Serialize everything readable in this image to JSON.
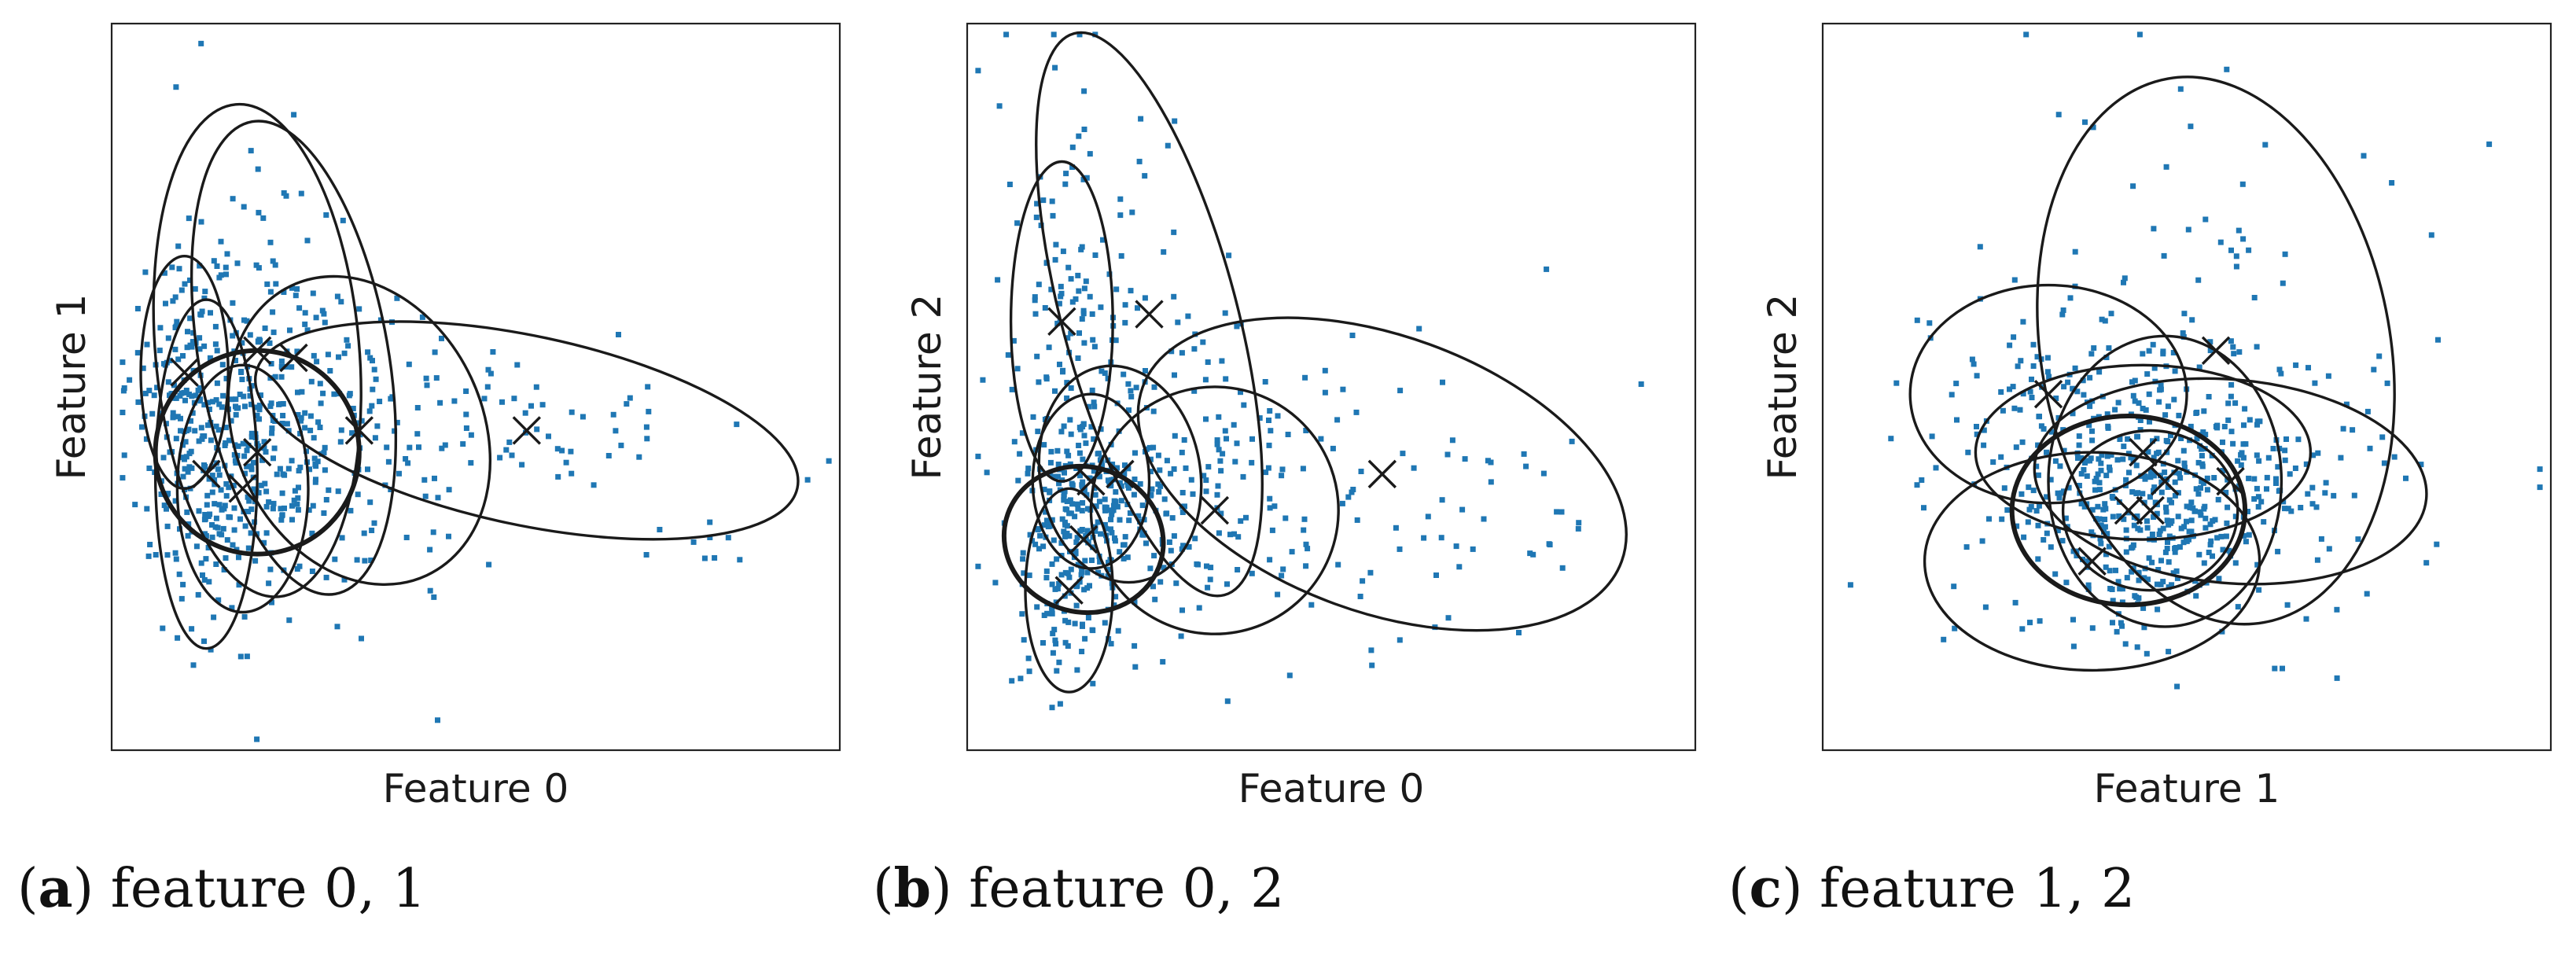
{
  "chart_data": [
    {
      "type": "scatter",
      "panel_letter": "a",
      "caption_text": "feature 0, 1",
      "xlabel": "Feature 0",
      "ylabel": "Feature 1",
      "ticks": "none",
      "grid": false,
      "marker_color": "#1f77b4",
      "ellipse_color": "#1a1a1a",
      "n_points": 650,
      "components": [
        {
          "mean": [
            0.13,
            0.38
          ],
          "axes": [
            0.07,
            0.24
          ],
          "angle": 0
        },
        {
          "mean": [
            0.2,
            0.55
          ],
          "axes": [
            0.14,
            0.34
          ],
          "angle": 5
        },
        {
          "mean": [
            0.25,
            0.54
          ],
          "axes": [
            0.13,
            0.33
          ],
          "angle": 10
        },
        {
          "mean": [
            0.2,
            0.41
          ],
          "axes": [
            0.14,
            0.14
          ],
          "angle": 0,
          "emphasis": true
        },
        {
          "mean": [
            0.34,
            0.44
          ],
          "axes": [
            0.17,
            0.22
          ],
          "angle": 25
        },
        {
          "mean": [
            0.57,
            0.44
          ],
          "axes": [
            0.38,
            0.13
          ],
          "angle": -12
        },
        {
          "mean": [
            0.18,
            0.36
          ],
          "axes": [
            0.09,
            0.17
          ],
          "angle": 0
        },
        {
          "mean": [
            0.1,
            0.52
          ],
          "axes": [
            0.06,
            0.16
          ],
          "angle": 0
        }
      ]
    },
    {
      "type": "scatter",
      "panel_letter": "b",
      "caption_text": "feature 0, 2",
      "xlabel": "Feature 0",
      "ylabel": "Feature 2",
      "ticks": "none",
      "grid": false,
      "marker_color": "#1f77b4",
      "ellipse_color": "#1a1a1a",
      "n_points": 650,
      "components": [
        {
          "mean": [
            0.13,
            0.59
          ],
          "axes": [
            0.07,
            0.22
          ],
          "angle": 0
        },
        {
          "mean": [
            0.25,
            0.6
          ],
          "axes": [
            0.12,
            0.4
          ],
          "angle": 15
        },
        {
          "mean": [
            0.21,
            0.38
          ],
          "axes": [
            0.11,
            0.15
          ],
          "angle": 10
        },
        {
          "mean": [
            0.16,
            0.29
          ],
          "axes": [
            0.11,
            0.1
          ],
          "angle": -15,
          "emphasis": true
        },
        {
          "mean": [
            0.34,
            0.33
          ],
          "axes": [
            0.17,
            0.17
          ],
          "angle": 20
        },
        {
          "mean": [
            0.57,
            0.38
          ],
          "axes": [
            0.35,
            0.19
          ],
          "angle": -20
        },
        {
          "mean": [
            0.14,
            0.22
          ],
          "axes": [
            0.06,
            0.14
          ],
          "angle": 0
        },
        {
          "mean": [
            0.17,
            0.37
          ],
          "axes": [
            0.08,
            0.12
          ],
          "angle": 0
        }
      ]
    },
    {
      "type": "scatter",
      "panel_letter": "c",
      "caption_text": "feature 1, 2",
      "xlabel": "Feature 1",
      "ylabel": "Feature 2",
      "ticks": "none",
      "grid": false,
      "marker_color": "#1f77b4",
      "ellipse_color": "#1a1a1a",
      "n_points": 650,
      "components": [
        {
          "mean": [
            0.31,
            0.49
          ],
          "axes": [
            0.19,
            0.15
          ],
          "angle": 0
        },
        {
          "mean": [
            0.54,
            0.55
          ],
          "axes": [
            0.24,
            0.38
          ],
          "angle": 10
        },
        {
          "mean": [
            0.44,
            0.41
          ],
          "axes": [
            0.23,
            0.12
          ],
          "angle": 0
        },
        {
          "mean": [
            0.42,
            0.33
          ],
          "axes": [
            0.16,
            0.13
          ],
          "angle": 0,
          "emphasis": true
        },
        {
          "mean": [
            0.56,
            0.37
          ],
          "axes": [
            0.27,
            0.14
          ],
          "angle": -5
        },
        {
          "mean": [
            0.47,
            0.37
          ],
          "axes": [
            0.16,
            0.2
          ],
          "angle": 0
        },
        {
          "mean": [
            0.37,
            0.26
          ],
          "axes": [
            0.23,
            0.15
          ],
          "angle": 0
        },
        {
          "mean": [
            0.45,
            0.33
          ],
          "axes": [
            0.12,
            0.11
          ],
          "angle": 0
        }
      ]
    }
  ]
}
